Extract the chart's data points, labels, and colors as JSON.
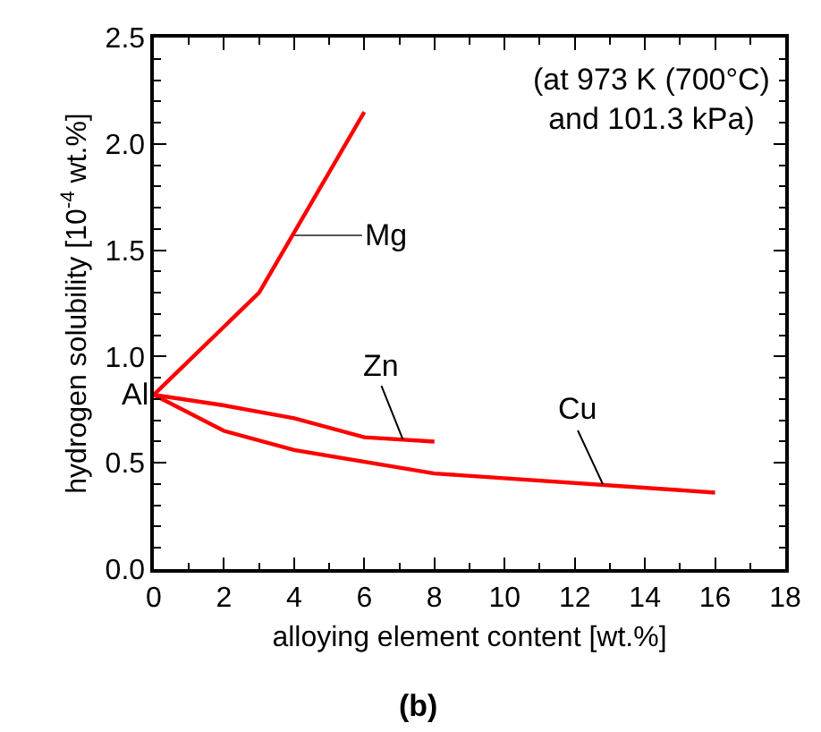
{
  "chart_data": {
    "type": "line",
    "xlabel": "alloying element content [wt.%]",
    "ylabel": "hydrogen solubility [10$^{-4}$ wt.%]",
    "xlim": [
      0,
      18
    ],
    "xticks": [
      0,
      2,
      4,
      6,
      8,
      10,
      12,
      14,
      16,
      18
    ],
    "ylim": [
      0,
      2.5
    ],
    "yticks": [
      {
        "value": 0,
        "label": "0.0"
      },
      0.5,
      {
        "value": 1,
        "label": "1.0"
      },
      1.5,
      {
        "value": 2,
        "label": "2.0"
      },
      2.5
    ],
    "series": [
      {
        "color": "#ff0000",
        "x": [
          0,
          3,
          6
        ],
        "values": [
          0.82,
          1.3,
          2.15
        ]
      },
      {
        "color": "#ff0000",
        "x": [
          0,
          2,
          4,
          6,
          8
        ],
        "values": [
          0.82,
          0.77,
          0.71,
          0.62,
          0.6
        ]
      },
      {
        "color": "#ff0000",
        "x": [
          0,
          2,
          4,
          8,
          16
        ],
        "values": [
          0.82,
          0.65,
          0.56,
          0.45,
          0.36
        ]
      }
    ],
    "annotations": [
      {
        "text": "Mg",
        "x": 4,
        "y": 1.57
      },
      {
        "text": "Zn",
        "x": 7.1,
        "y": 0.61
      },
      {
        "text": "Cu",
        "x": 12.8,
        "y": 0.4
      },
      {
        "text": "Al",
        "x": 0,
        "y": 0.82
      },
      "(at 973 K (700°C)\nand 101.3 kPa)",
      "(b)"
    ],
    "marker": "none",
    "line_style": "solid"
  }
}
